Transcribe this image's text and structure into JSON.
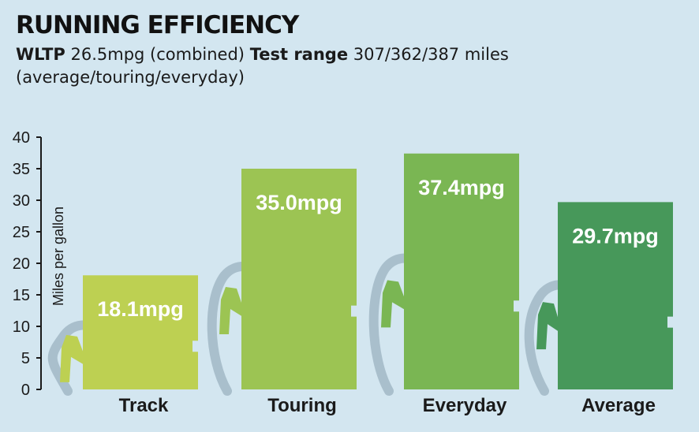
{
  "header": {
    "title": "RUNNING EFFICIENCY",
    "wltp_label": "WLTP",
    "wltp_value": "26.5mpg (combined)",
    "range_label": "Test range",
    "range_value": "307/362/387 miles",
    "range_note": "(average/touring/everyday)"
  },
  "chart_data": {
    "type": "bar",
    "title": "RUNNING EFFICIENCY",
    "xlabel": "",
    "ylabel": "Miles per gallon",
    "ylim": [
      0,
      40
    ],
    "yticks": [
      0,
      5,
      10,
      15,
      20,
      25,
      30,
      35,
      40
    ],
    "categories": [
      "Track",
      "Touring",
      "Everyday",
      "Average"
    ],
    "values": [
      18.1,
      35.0,
      37.4,
      29.7
    ],
    "data_labels": [
      "18.1mpg",
      "35.0mpg",
      "37.4mpg",
      "29.7mpg"
    ],
    "colors": [
      "#bdd052",
      "#9cc453",
      "#7ab653",
      "#47985a"
    ],
    "hose_color": "#a9bfcc"
  }
}
